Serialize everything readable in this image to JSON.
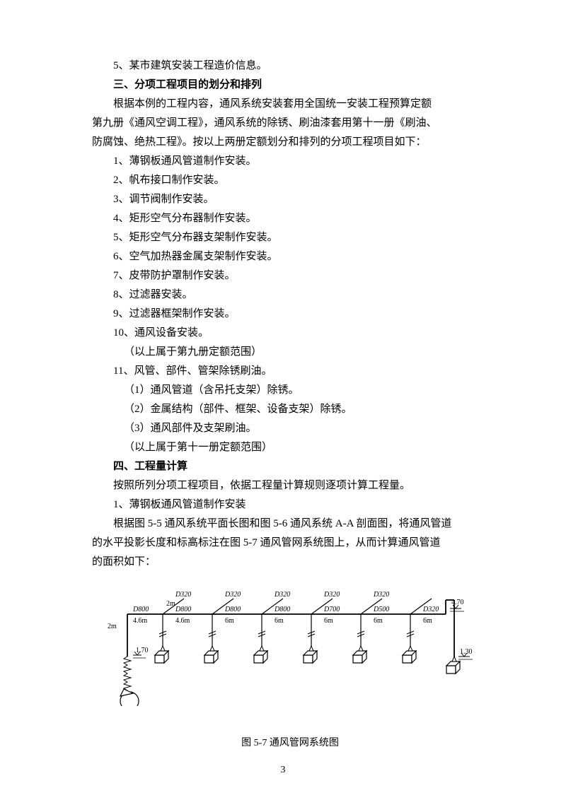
{
  "lines": {
    "line1": "5、某市建筑安装工程造价信息。",
    "heading1": "三、分项工程项目的划分和排列",
    "para1a": "根据本例的工程内容，通风系统安装套用全国统一安装工程预算定额",
    "para1b": "第九册《通风空调工程》，通风系统的除锈、刷油漆套用第十一册《刷油、",
    "para1c": "防腐蚀、绝热工程》。按以上两册定额划分和排列的分项工程项目如下：",
    "item1": "1、薄钢板通风管道制作安装。",
    "item2": "2、帆布接口制作安装。",
    "item3": "3、调节阀制作安装。",
    "item4": "4、矩形空气分布器制作安装。",
    "item5": "5、矩形空气分布器支架制作安装。",
    "item6": "6、空气加热器金属支架制作安装。",
    "item7": "7、皮带防护罩制作安装。",
    "item8": "8、过滤器安装。",
    "item9": "9、过滤器框架制作安装。",
    "item10": "10、通风设备安装。",
    "note1": "（以上属于第九册定额范围）",
    "item11": "11、风管、部件、管架除锈刷油。",
    "sub1": "（1）通风管道（含吊托支架）除锈。",
    "sub2": "（2）金属结构（部件、框架、设备支架）除锈。",
    "sub3": "（3）通风部件及支架刷油。",
    "note2": "（以上属于第十一册定额范围）",
    "heading2": "四、工程量计算",
    "para2": "按照所列分项工程项目，依据工程量计算规则逐项计算工程量。",
    "item_calc1": "1、薄钢板通风管道制作安装",
    "para3a": "根据图 5-5 通风系统平面长图和图 5-6 通风系统 A-A 剖面图，将通风管道",
    "para3b": "的水平投影长度和标高标注在图 5-7 通风管网系统图上，从而计算通风管道",
    "para3c": "的面积如下：",
    "caption": "图 5-7 通风管网系统图",
    "pagenum": "3"
  },
  "diagram": {
    "top_labels": [
      "D320",
      "D320",
      "D320",
      "D320",
      "D320"
    ],
    "mid_labels": [
      "D800",
      "D800",
      "D800",
      "D800",
      "D700",
      "D500",
      "D320"
    ],
    "bottom_labels": [
      "4.6m",
      "6m",
      "6m",
      "6m",
      "6m",
      "6m"
    ],
    "left_height": "2m",
    "branch_height": "2m",
    "elev_left": "1.70",
    "elev_right_top": "4.70",
    "elev_right_bot": "1.30",
    "colors": {
      "line": "#000000",
      "fill": "#ffffff"
    },
    "line_width": 1.8,
    "line_width_thin": 1.2
  }
}
